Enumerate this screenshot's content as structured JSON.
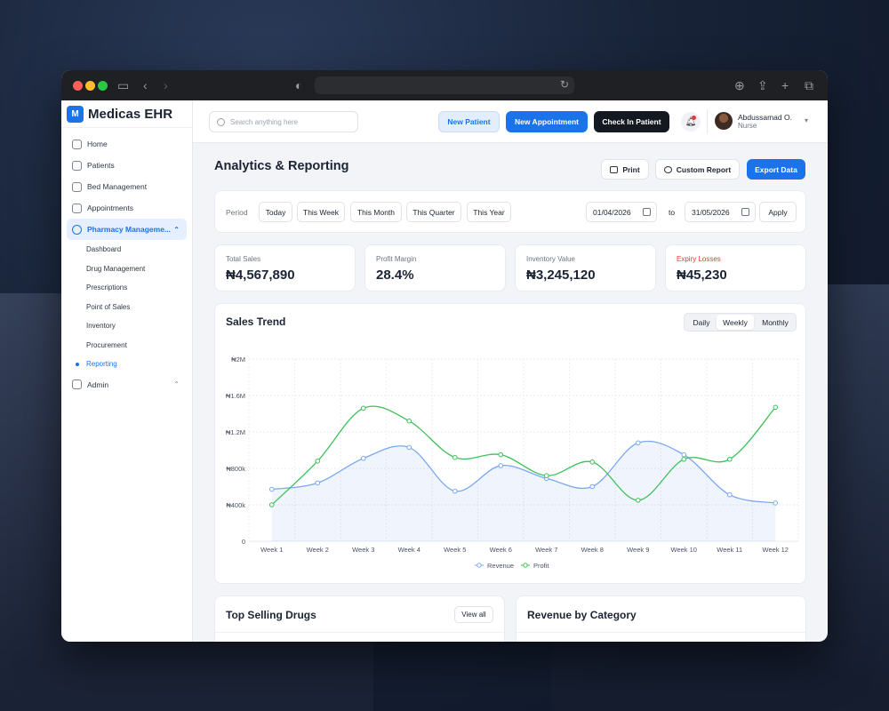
{
  "app": {
    "brand_letter": "M",
    "brand_name": "Medicas EHR"
  },
  "sidebar": {
    "items": [
      {
        "label": "Home",
        "icon": "home-icon"
      },
      {
        "label": "Patients",
        "icon": "users-icon"
      },
      {
        "label": "Bed Management",
        "icon": "bed-icon"
      },
      {
        "label": "Appointments",
        "icon": "calendar-icon"
      },
      {
        "label": "Pharmacy Manageme...",
        "icon": "pill-icon"
      },
      {
        "label": "Admin",
        "icon": "admin-icon"
      }
    ],
    "pharmacy_sub": [
      "Dashboard",
      "Drug Management",
      "Prescriptions",
      "Point of Sales",
      "Inventory",
      "Procurement",
      "Reporting"
    ]
  },
  "topbar": {
    "search_placeholder": "Search anything here",
    "new_patient": "New Patient",
    "new_appointment": "New Appointment",
    "check_in": "Check In Patient",
    "user_name": "Abdussamad O.",
    "user_role": "Nurse"
  },
  "page": {
    "title": "Analytics & Reporting",
    "print": "Print",
    "custom_report": "Custom Report",
    "export": "Export Data"
  },
  "filter": {
    "period_label": "Period",
    "periods": [
      "Today",
      "This Week",
      "This Month",
      "This Quarter",
      "This Year"
    ],
    "date_from": "01/04/2026",
    "to_label": "to",
    "date_to": "31/05/2026",
    "apply": "Apply"
  },
  "stats": [
    {
      "label": "Total Sales",
      "value": "₦4,567,890"
    },
    {
      "label": "Profit Margin",
      "value": "28.4%"
    },
    {
      "label": "Inventory Value",
      "value": "₦3,245,120"
    },
    {
      "label": "Expiry Losses",
      "value": "₦45,230"
    }
  ],
  "sales_trend": {
    "title": "Sales Trend",
    "toggles": [
      "Daily",
      "Weekly",
      "Monthly"
    ],
    "selected_toggle": "Weekly"
  },
  "chart_data": {
    "type": "line",
    "title": "Sales Trend",
    "categories": [
      "Week 1",
      "Week 2",
      "Week 3",
      "Week 4",
      "Week 5",
      "Week 6",
      "Week 7",
      "Week 8",
      "Week 9",
      "Week 10",
      "Week 11",
      "Week 12"
    ],
    "y_ticks": [
      "0",
      "₦400k",
      "₦800k",
      "₦1.2M",
      "₦1.6M",
      "₦2M"
    ],
    "ylim": [
      0,
      2000000
    ],
    "series": [
      {
        "name": "Revenue",
        "color": "#7aa7f0",
        "values": [
          570000,
          640000,
          910000,
          1030000,
          550000,
          830000,
          690000,
          600000,
          1080000,
          950000,
          510000,
          420000
        ]
      },
      {
        "name": "Profit",
        "color": "#3ec05a",
        "values": [
          400000,
          880000,
          1460000,
          1320000,
          920000,
          950000,
          720000,
          870000,
          450000,
          900000,
          900000,
          1470000
        ]
      }
    ],
    "grid": true,
    "legend": "bottom-center"
  },
  "bottom": {
    "top_selling": "Top Selling Drugs",
    "view_all": "View all",
    "revenue_category": "Revenue by Category"
  }
}
